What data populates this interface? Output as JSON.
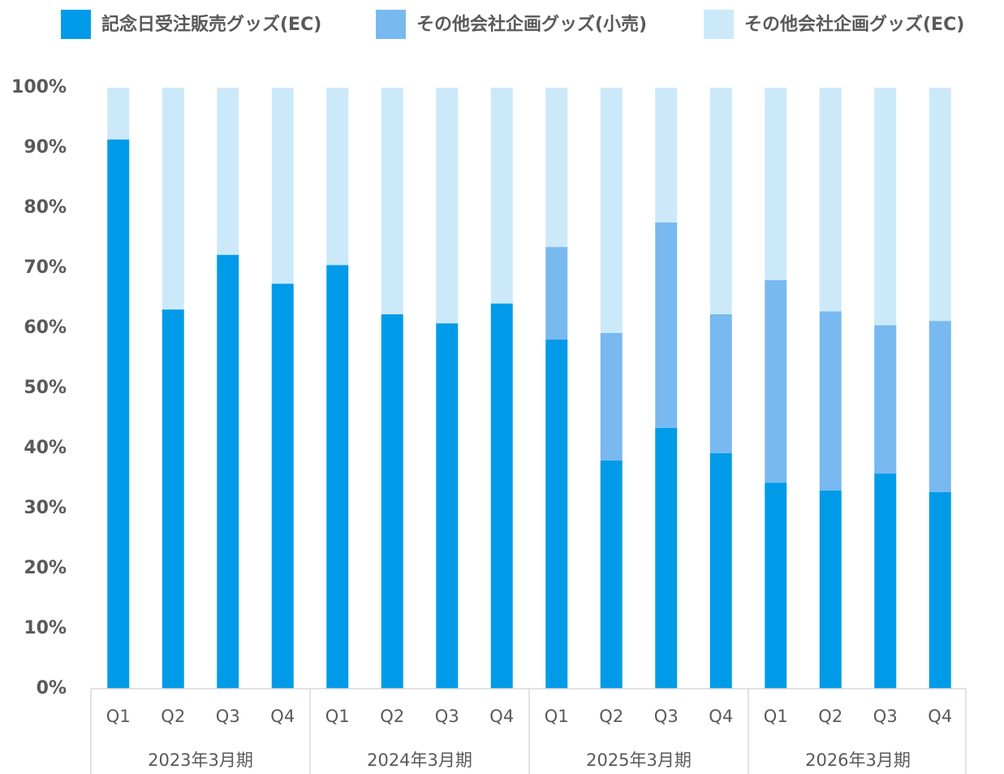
{
  "chart_data": {
    "type": "stacked_bar",
    "categories": [
      "Q1",
      "Q2",
      "Q3",
      "Q4",
      "Q1",
      "Q2",
      "Q3",
      "Q4",
      "Q1",
      "Q2",
      "Q3",
      "Q4",
      "Q1",
      "Q2",
      "Q3",
      "Q4"
    ],
    "groups": [
      "2023年3月期",
      "2024年3月期",
      "2025年3月期",
      "2026年3月期"
    ],
    "series": [
      {
        "name": "記念日受注販売グッズ(EC)",
        "color": "#009be8",
        "values": [
          91.4,
          63.1,
          72.2,
          67.4,
          70.5,
          62.3,
          60.8,
          64.1,
          58.1,
          38.0,
          43.4,
          39.2,
          34.3,
          33.0,
          35.8,
          32.7
        ]
      },
      {
        "name": "その他会社企画グッズ(小売)",
        "color": "#78b9f0",
        "values": [
          0,
          0,
          0,
          0,
          0,
          0,
          0,
          0,
          15.4,
          21.2,
          34.2,
          23.1,
          33.7,
          29.8,
          24.7,
          28.5
        ]
      },
      {
        "name": "その他会社企画グッズ(EC)",
        "color": "#cce9fa",
        "values": [
          8.6,
          36.9,
          27.8,
          32.6,
          29.5,
          37.7,
          39.2,
          35.9,
          26.5,
          40.8,
          22.4,
          37.7,
          32.0,
          37.2,
          39.5,
          38.8
        ]
      }
    ],
    "ylim": [
      0,
      100
    ],
    "yticks": [
      {
        "value": 0,
        "label": "0%"
      },
      {
        "value": 10,
        "label": "10%"
      },
      {
        "value": 20,
        "label": "20%"
      },
      {
        "value": 30,
        "label": "30%"
      },
      {
        "value": 40,
        "label": "40%"
      },
      {
        "value": 50,
        "label": "50%"
      },
      {
        "value": 60,
        "label": "60%"
      },
      {
        "value": 70,
        "label": "70%"
      },
      {
        "value": 80,
        "label": "80%"
      },
      {
        "value": 90,
        "label": "90%"
      },
      {
        "value": 100,
        "label": "100%"
      }
    ],
    "legend": "top"
  }
}
